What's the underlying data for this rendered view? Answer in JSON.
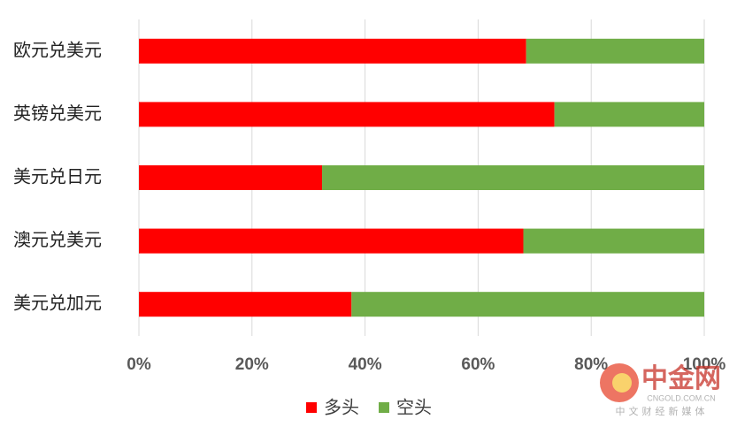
{
  "chart_data": {
    "type": "stacked-barh",
    "categories": [
      "欧元兑美元",
      "英镑兑美元",
      "美元兑日元",
      "澳元兑美元",
      "美元兑加元"
    ],
    "series": [
      {
        "name": "多头",
        "color": "#ff0000",
        "values": [
          68.5,
          73.5,
          32.4,
          68,
          37.6
        ]
      },
      {
        "name": "空头",
        "color": "#70ad47",
        "values": [
          31.5,
          26.5,
          67.6,
          32,
          62.4
        ]
      }
    ],
    "xlim": [
      0,
      100
    ],
    "xticks": [
      {
        "value": 0,
        "label": "0%"
      },
      {
        "value": 20,
        "label": "20%"
      },
      {
        "value": 40,
        "label": "40%"
      },
      {
        "value": 60,
        "label": "60%"
      },
      {
        "value": 80,
        "label": "80%"
      },
      {
        "value": 100,
        "label": "100%"
      }
    ],
    "grid": true,
    "legend": "bottom"
  },
  "watermark": {
    "brand": "中金网",
    "url": "CNGOLD.COM.CN",
    "slogan": "中文财经新媒体"
  }
}
